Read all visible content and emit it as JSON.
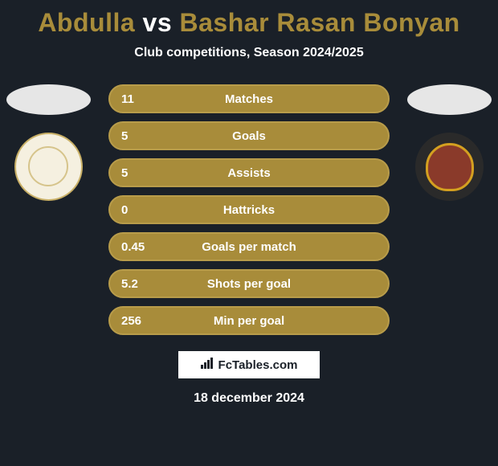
{
  "title": {
    "player1": "Abdulla",
    "vs": "vs",
    "player2": "Bashar Rasan Bonyan",
    "player1_color": "#a88c3a",
    "vs_color": "#ffffff",
    "player2_color": "#a88c3a"
  },
  "subtitle": "Club competitions, Season 2024/2025",
  "stats": {
    "row_background": "#a88c3a",
    "row_border": "#b89c4a",
    "text_color": "#ffffff",
    "rows": [
      {
        "value_left": "11",
        "label": "Matches"
      },
      {
        "value_left": "5",
        "label": "Goals"
      },
      {
        "value_left": "5",
        "label": "Assists"
      },
      {
        "value_left": "0",
        "label": "Hattricks"
      },
      {
        "value_left": "0.45",
        "label": "Goals per match"
      },
      {
        "value_left": "5.2",
        "label": "Shots per goal"
      },
      {
        "value_left": "256",
        "label": "Min per goal"
      }
    ]
  },
  "footer": {
    "logo_text": "FcTables.com",
    "date": "18 december 2024"
  },
  "colors": {
    "background": "#1a2028",
    "oval": "#e6e6e6",
    "badge_left_bg": "#f5f0e0",
    "badge_left_border": "#c9b067",
    "badge_right_bg": "#2a2a2a",
    "badge_right_shield": "#8a3a2a",
    "badge_right_shield_border": "#d4a020"
  }
}
